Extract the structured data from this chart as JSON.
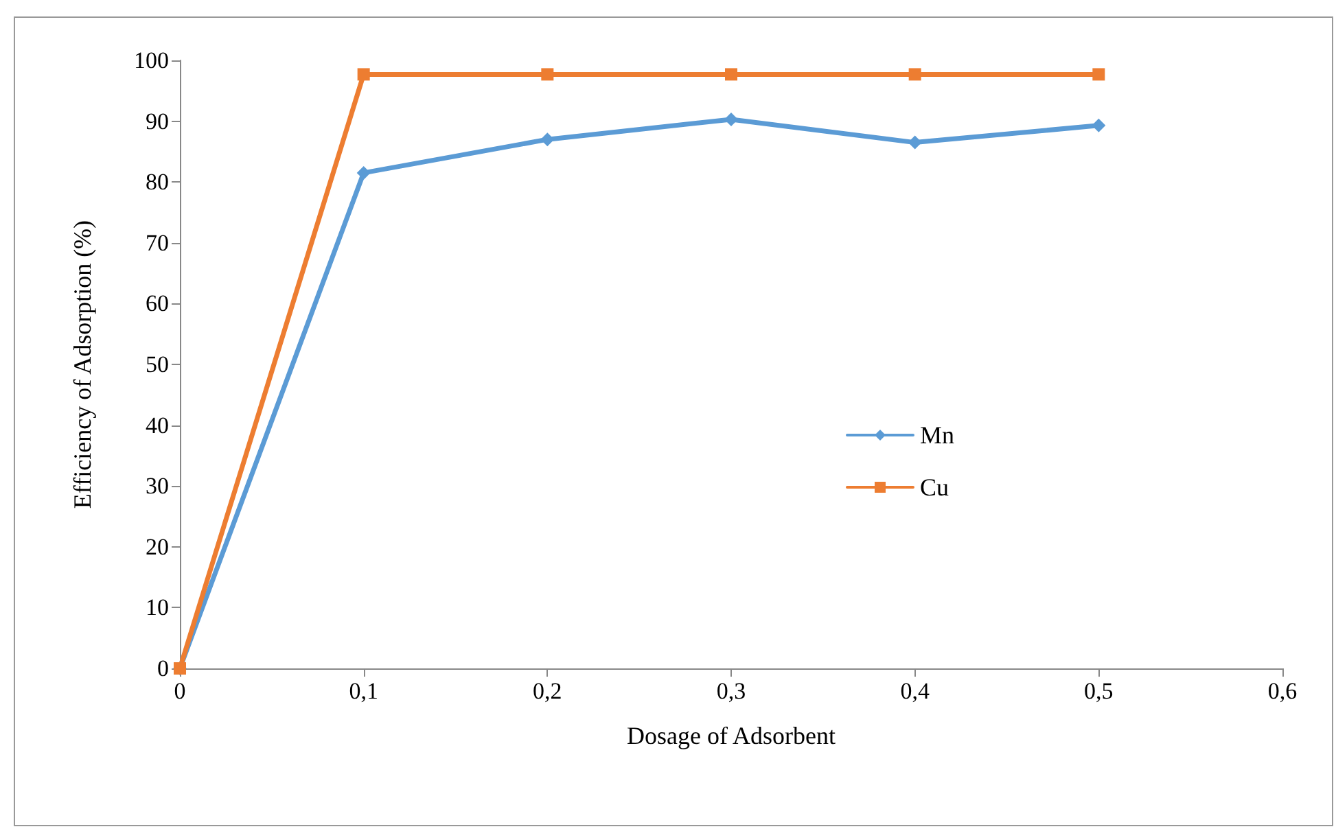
{
  "chart_data": {
    "type": "line",
    "xlabel": "Dosage of Adsorbent",
    "ylabel": "Efficiency of Adsorption (%)",
    "x": [
      0,
      0.1,
      0.2,
      0.3,
      0.4,
      0.5
    ],
    "series": [
      {
        "name": "Mn",
        "color": "#5b9bd5",
        "marker": "diamond",
        "values": [
          0,
          81.5,
          87,
          90.3,
          86.5,
          89.3
        ]
      },
      {
        "name": "Cu",
        "color": "#ed7d31",
        "marker": "square",
        "values": [
          0,
          97.7,
          97.7,
          97.7,
          97.7,
          97.7
        ]
      }
    ],
    "xlim": [
      0,
      0.6
    ],
    "xticks": [
      {
        "value": 0,
        "label": "0"
      },
      {
        "value": 0.1,
        "label": "0,1"
      },
      {
        "value": 0.2,
        "label": "0,2"
      },
      {
        "value": 0.3,
        "label": "0,3"
      },
      {
        "value": 0.4,
        "label": "0,4"
      },
      {
        "value": 0.5,
        "label": "0,5"
      },
      {
        "value": 0.6,
        "label": "0,6"
      }
    ],
    "ylim": [
      0,
      100
    ],
    "yticks": [
      0,
      10,
      20,
      30,
      40,
      50,
      60,
      70,
      80,
      90,
      100
    ],
    "grid": false,
    "legend": "right",
    "line_style": "solid"
  }
}
